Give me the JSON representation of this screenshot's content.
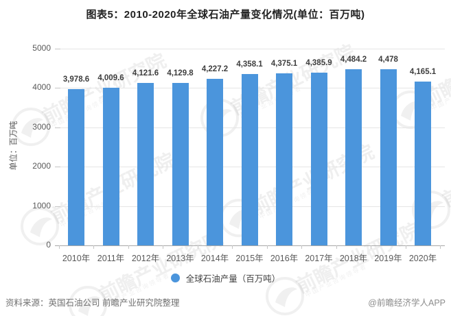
{
  "title": "图表5：2010-2020年全球石油产量变化情况(单位：百万吨)",
  "chart_data": {
    "type": "bar",
    "title": "图表5：2010-2020年全球石油产量变化情况(单位：百万吨)",
    "categories": [
      "2010年",
      "2011年",
      "2012年",
      "2013年",
      "2014年",
      "2015年",
      "2016年",
      "2017年",
      "2018年",
      "2019年",
      "2020年"
    ],
    "series": [
      {
        "name": "全球石油产量（百万吨）",
        "values": [
          3978.6,
          4009.6,
          4121.6,
          4129.8,
          4227.2,
          4358.1,
          4375.1,
          4385.9,
          4484.2,
          4478,
          4165.1
        ],
        "value_labels": [
          "3,978.6",
          "4,009.6",
          "4,121.6",
          "4,129.8",
          "4,227.2",
          "4,358.1",
          "4,375.1",
          "4,385.9",
          "4,484.2",
          "4,478",
          "4,165.1"
        ]
      }
    ],
    "xlabel": "",
    "ylabel": "单位：百万吨",
    "ylim": [
      0,
      5000
    ],
    "yticks": [
      0,
      1000,
      2000,
      3000,
      4000,
      5000
    ],
    "grid": true,
    "legend_position": "bottom",
    "bar_color": "#4B95DC"
  },
  "legend": {
    "label": "全球石油产量（百万吨）"
  },
  "footer": {
    "source": "资料来源：英国石油公司 前瞻产业研究院整理",
    "credit": "@前瞻经济学人APP"
  },
  "watermark": {
    "text": "前瞻产业研究院",
    "subtext": "中国产业咨询领导者"
  },
  "colors": {
    "bar": "#4B95DC",
    "gridline": "#e5e5e5",
    "axis_text": "#595959",
    "title_text": "#222222",
    "source_text": "#707070"
  }
}
